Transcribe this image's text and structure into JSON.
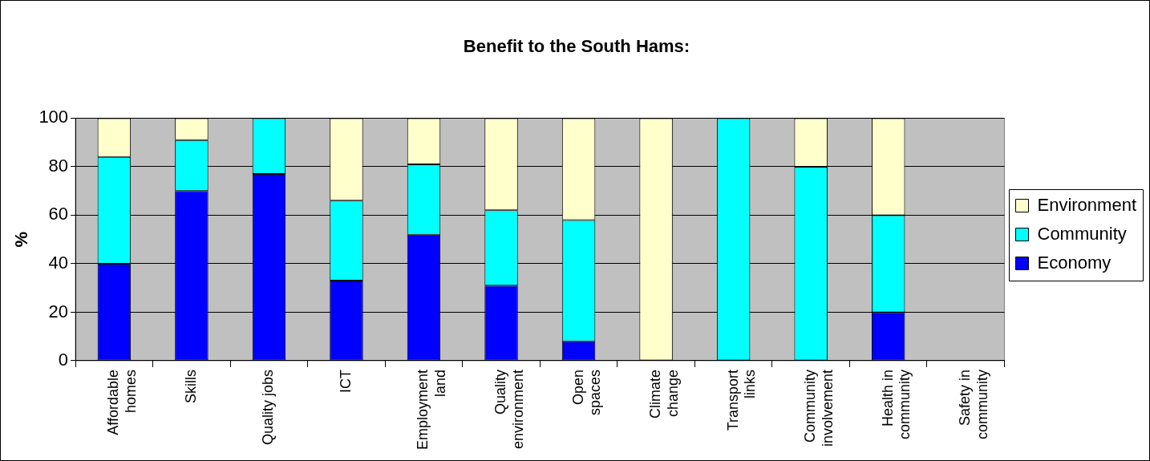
{
  "chart_data": {
    "type": "bar",
    "title": "Benefit to the South Hams:",
    "ylabel": "%",
    "stacked": true,
    "categories": [
      "Affordable\nhomes",
      "Skills",
      "Quality jobs",
      "ICT",
      "Employment\nland",
      "Quality\nenvironment",
      "Open\nspaces",
      "Climate\nchange",
      "Transport\nlinks",
      "Community\ninvolvement",
      "Health in\ncommunity",
      "Safety in\ncommunity"
    ],
    "series": [
      {
        "name": "Economy",
        "color": "#0000ff",
        "values": [
          40,
          70,
          77,
          33,
          52,
          31,
          8,
          0,
          0,
          0,
          20,
          0
        ]
      },
      {
        "name": "Community",
        "color": "#00ffff",
        "values": [
          44,
          21,
          23,
          33,
          29,
          31,
          50,
          0,
          100,
          80,
          40,
          0
        ]
      },
      {
        "name": "Environment",
        "color": "#ffffcc",
        "values": [
          16,
          9,
          0,
          34,
          19,
          38,
          42,
          100,
          0,
          20,
          40,
          0
        ]
      }
    ],
    "ylim": [
      0,
      100
    ],
    "yticks": [
      0,
      20,
      40,
      60,
      80,
      100
    ],
    "grid": "y",
    "legend": "right"
  }
}
